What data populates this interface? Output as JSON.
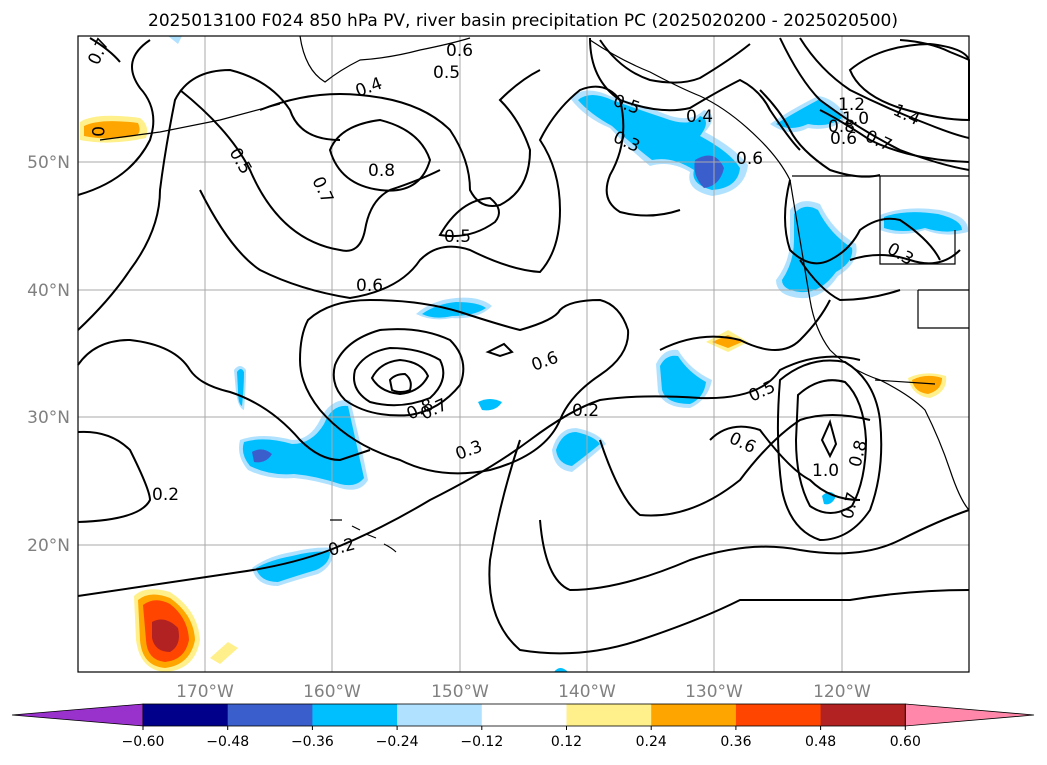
{
  "title": "2025013100 F024 850 hPa PV, river basin precipitation PC (2025020200 - 2025020500)",
  "axes": {
    "lat_ticks": [
      "50°N",
      "40°N",
      "30°N",
      "20°N"
    ],
    "lon_ticks": [
      "170°W",
      "160°W",
      "150°W",
      "140°W",
      "130°W",
      "120°W"
    ]
  },
  "colorbar": {
    "colors": [
      "#9932cc",
      "#00008b",
      "#3a5fcd",
      "#00bfff",
      "#b0e2ff",
      "#ffffff",
      "#fff08c",
      "#ffa500",
      "#ff4500",
      "#b22222",
      "#ff88aa"
    ],
    "tick_labels": [
      "−0.60",
      "−0.48",
      "−0.36",
      "−0.24",
      "−0.12",
      "0.12",
      "0.24",
      "0.36",
      "0.48",
      "0.60"
    ]
  },
  "contour_labels": [
    "0.7",
    "0.6",
    "0.5",
    "0.4",
    "0.8",
    "0.5",
    "0.7",
    "0.5",
    "0.6",
    "0.5",
    "0.3",
    "0.4",
    "0.6",
    "1.2",
    "1.0",
    "0.8",
    "0.6",
    "0.7",
    "1.4",
    "0.3",
    "0.6",
    "0.8",
    "0.7",
    "0.2",
    "0.3",
    "0.5",
    "0.6",
    "1.0",
    "0.8",
    "0.7",
    "0.2",
    "0.2",
    "0"
  ]
}
